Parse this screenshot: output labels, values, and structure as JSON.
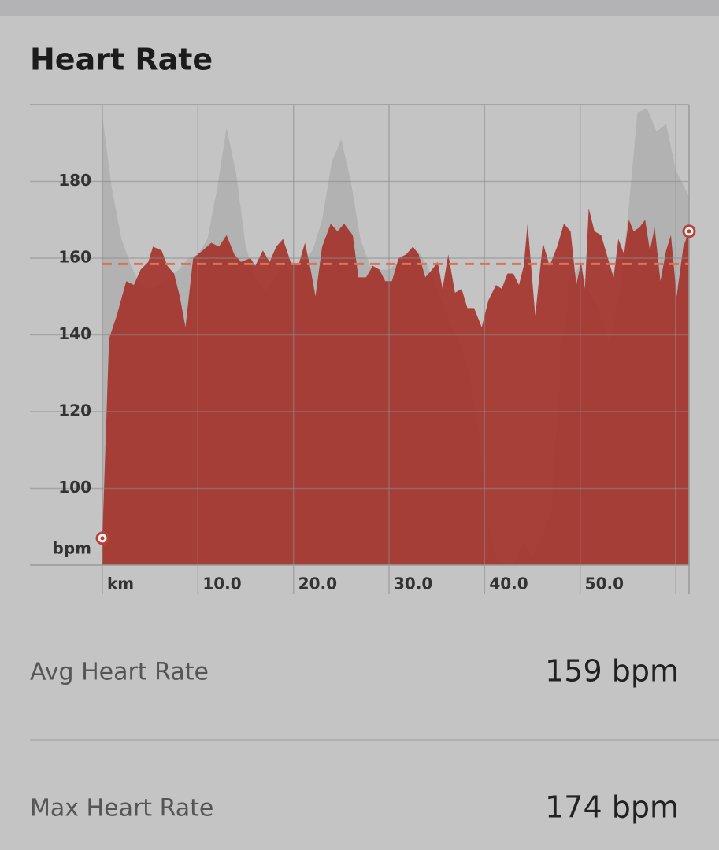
{
  "title": "Heart Rate",
  "chart_data": {
    "type": "area",
    "series": [
      {
        "color": "#b2b2b2",
        "x": [
          0,
          1,
          2,
          3,
          4,
          5,
          6,
          7,
          8,
          9,
          10,
          11,
          12,
          13,
          14,
          15,
          16,
          17,
          18,
          19,
          20,
          21,
          22,
          23,
          24,
          25,
          26,
          27,
          28,
          29,
          30,
          31,
          32,
          33,
          34,
          35,
          36,
          37,
          38,
          39,
          40,
          41,
          42,
          43,
          44,
          45,
          46,
          47,
          48,
          49,
          50,
          51,
          52,
          53,
          54,
          55,
          56,
          57,
          58,
          59,
          60,
          61.4
        ],
        "values": [
          197,
          178,
          165,
          158,
          153,
          152,
          153,
          155,
          157,
          160,
          161,
          165,
          178,
          194,
          182,
          163,
          155,
          151,
          155,
          158,
          157,
          159,
          162,
          170,
          185,
          191,
          180,
          165,
          158,
          157,
          157,
          159,
          161,
          162,
          158,
          152,
          145,
          140,
          134,
          122,
          100,
          82,
          80,
          80,
          86,
          82,
          88,
          94,
          135,
          155,
          158,
          151,
          147,
          138,
          148,
          171,
          198,
          199,
          193,
          195,
          183,
          176
        ]
      },
      {
        "color": "#a3342c",
        "x": [
          0,
          0.7,
          1.5,
          2.5,
          3.3,
          4.0,
          4.8,
          5.3,
          6.2,
          6.8,
          7.5,
          8.1,
          8.7,
          9.5,
          10.5,
          11.4,
          12.2,
          13.0,
          13.8,
          14.5,
          15.5,
          16.0,
          16.8,
          17.5,
          18.2,
          18.9,
          19.7,
          20.5,
          21.2,
          21.8,
          22.3,
          23.0,
          23.9,
          24.6,
          25.3,
          26.2,
          26.8,
          27.6,
          28.3,
          29.0,
          29.6,
          30.3,
          31.0,
          31.8,
          32.5,
          33.1,
          33.8,
          34.5,
          35.1,
          35.6,
          36.2,
          36.9,
          37.6,
          38.2,
          38.9,
          39.7,
          40.4,
          41.2,
          41.8,
          42.4,
          43.0,
          43.6,
          44.1,
          44.5,
          45.3,
          46.1,
          46.8,
          47.6,
          48.3,
          49.0,
          49.6,
          50.1,
          50.5,
          50.9,
          51.5,
          52.2,
          52.9,
          53.5,
          54.0,
          54.6,
          55.1,
          55.6,
          56.2,
          56.8,
          57.3,
          57.8,
          58.4,
          59.0,
          59.5,
          60.1,
          60.8,
          61.4
        ],
        "values": [
          87,
          139,
          145,
          154,
          153,
          157,
          159,
          163,
          162,
          158,
          156,
          150,
          142,
          160,
          162,
          164,
          163,
          166,
          161,
          159,
          160,
          158,
          162,
          159,
          163,
          165,
          159,
          158,
          164,
          157,
          150,
          163,
          169,
          167,
          169,
          166,
          155,
          155,
          158,
          157,
          154,
          154,
          160,
          161,
          163,
          161,
          155,
          157,
          159,
          152,
          161,
          151,
          152,
          147,
          147,
          142,
          149,
          153,
          152,
          156,
          156,
          153,
          158,
          169,
          145,
          164,
          158,
          163,
          169,
          167,
          153,
          159,
          152,
          173,
          167,
          166,
          160,
          155,
          165,
          161,
          170,
          167,
          168,
          170,
          162,
          168,
          154,
          162,
          166,
          150,
          163,
          167
        ]
      }
    ],
    "reference_line": {
      "value": 158.5,
      "color": "#d9735a"
    },
    "y_unit_label": "bpm",
    "xlim": [
      0,
      61.4
    ],
    "ylim": [
      80,
      200
    ],
    "xticks": [
      {
        "value": 0,
        "label": "km"
      },
      {
        "value": 10,
        "label": "10.0"
      },
      {
        "value": 20,
        "label": "20.0"
      },
      {
        "value": 30,
        "label": "30.0"
      },
      {
        "value": 40,
        "label": "40.0"
      },
      {
        "value": 50,
        "label": "50.0"
      }
    ],
    "yticks": [
      100,
      120,
      140,
      160,
      180
    ],
    "grid": true
  },
  "stats": [
    {
      "label": "Avg Heart Rate",
      "value": "159 bpm"
    },
    {
      "label": "Max Heart Rate",
      "value": "174 bpm"
    }
  ]
}
